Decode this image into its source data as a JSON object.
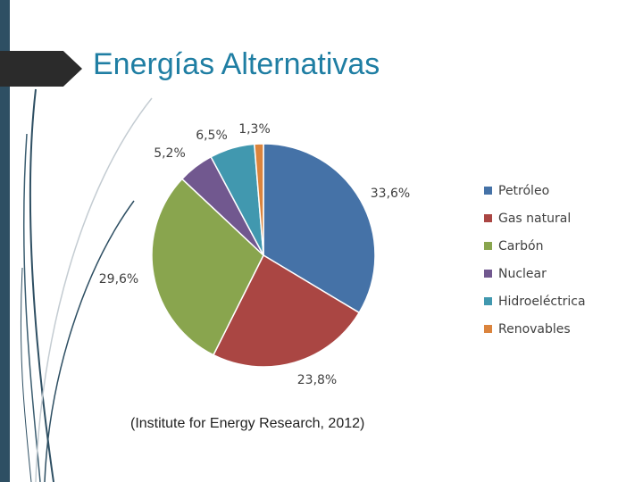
{
  "slide": {
    "title": "Energías Alternativas",
    "source": "(Institute for Energy Research, 2012)"
  },
  "chart_data": {
    "type": "pie",
    "title": "",
    "legend_position": "right",
    "labels": [
      "Petróleo",
      "Gas natural",
      "Carbón",
      "Nuclear",
      "Hidroeléctrica",
      "Renovables"
    ],
    "values": [
      33.6,
      23.8,
      29.6,
      5.2,
      6.5,
      1.3
    ],
    "data_labels": [
      "33,6%",
      "23,8%",
      "29,6%",
      "5,2%",
      "6,5%",
      "1,3%"
    ],
    "colors": [
      "#4572a7",
      "#aa4643",
      "#89a54e",
      "#71588f",
      "#4198af",
      "#db843d"
    ]
  }
}
